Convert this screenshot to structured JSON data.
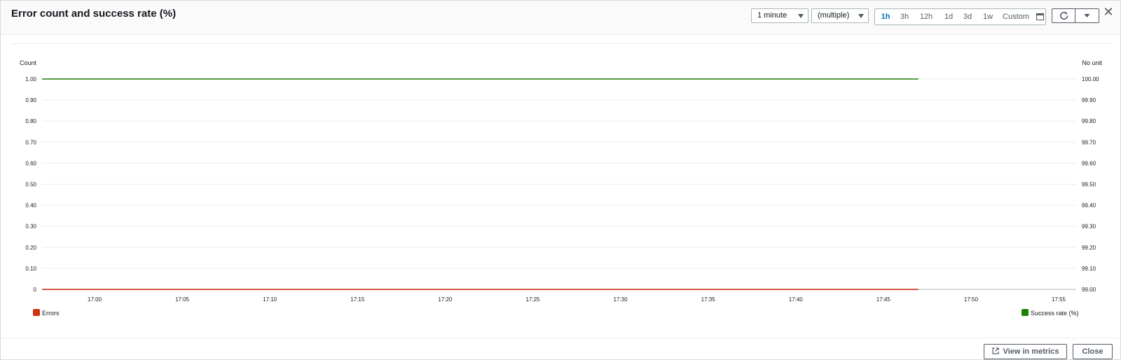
{
  "header": {
    "title": "Error count and success rate (%)",
    "period_select": "1 minute",
    "stat_select": "(multiple)",
    "time_ranges": [
      "1h",
      "3h",
      "12h",
      "1d",
      "3d",
      "1w"
    ],
    "active_range": "1h",
    "custom_label": "Custom",
    "refresh_icon": "refresh-icon",
    "dropdown_icon": "caret-down-icon",
    "close_icon": "close-icon"
  },
  "footer": {
    "view_metrics_label": "View in metrics",
    "close_label": "Close"
  },
  "colors": {
    "errors": "#d13212",
    "success": "#1d8102",
    "accent": "#0073bb"
  },
  "chart_data": {
    "type": "line",
    "title": "",
    "x_ticks": [
      "17:00",
      "17:05",
      "17:10",
      "17:15",
      "17:20",
      "17:25",
      "17:30",
      "17:35",
      "17:40",
      "17:45",
      "17:50",
      "17:55"
    ],
    "x_range": [
      "16:57",
      "17:56"
    ],
    "y_left_label": "Count",
    "y_left_ticks": [
      "1.00",
      "0.90",
      "0.80",
      "0.70",
      "0.60",
      "0.50",
      "0.40",
      "0.30",
      "0.20",
      "0.10",
      "0"
    ],
    "y_left_range": [
      0,
      1
    ],
    "y_right_label": "No unit",
    "y_right_ticks": [
      "100.00",
      "99.90",
      "99.80",
      "99.70",
      "99.60",
      "99.50",
      "99.40",
      "99.30",
      "99.20",
      "99.10",
      "99.00"
    ],
    "y_right_range": [
      99,
      100
    ],
    "grid": true,
    "legend_placement": "bottom",
    "series": [
      {
        "name": "Errors",
        "axis": "left",
        "color": "#d13212",
        "x_start": "16:57",
        "x_end": "17:47",
        "value": 0
      },
      {
        "name": "Success rate (%)",
        "axis": "right",
        "color": "#1d8102",
        "x_start": "16:57",
        "x_end": "17:47",
        "value": 100
      }
    ]
  }
}
